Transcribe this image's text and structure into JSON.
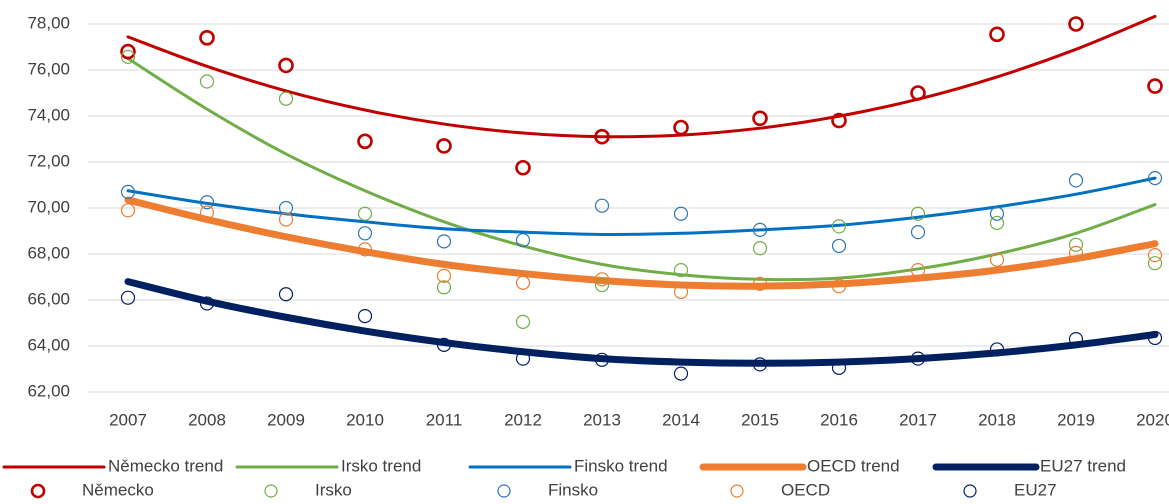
{
  "chart_data": {
    "type": "line",
    "categories": [
      "2007",
      "2008",
      "2009",
      "2010",
      "2011",
      "2012",
      "2013",
      "2014",
      "2015",
      "2016",
      "2017",
      "2018",
      "2019",
      "2020"
    ],
    "ylim": [
      62,
      78
    ],
    "yticks": [
      {
        "value": 62,
        "label": "62,00"
      },
      {
        "value": 64,
        "label": "64,00"
      },
      {
        "value": 66,
        "label": "66,00"
      },
      {
        "value": 68,
        "label": "68,00"
      },
      {
        "value": 70,
        "label": "70,00"
      },
      {
        "value": 72,
        "label": "72,00"
      },
      {
        "value": 74,
        "label": "74,00"
      },
      {
        "value": 76,
        "label": "76,00"
      },
      {
        "value": 78,
        "label": "78,00"
      }
    ],
    "grid": true,
    "legend": "bottom",
    "series": [
      {
        "name": "Německo trend",
        "kind": "line",
        "color": "#c00000",
        "values": [
          77.44,
          76.16,
          75.09,
          74.26,
          73.65,
          73.26,
          73.1,
          73.17,
          73.47,
          73.99,
          74.73,
          75.7,
          76.9,
          78.33
        ]
      },
      {
        "name": "Irsko trend",
        "kind": "line",
        "color": "#70ad47",
        "values": [
          76.5,
          74.3,
          72.35,
          70.75,
          69.4,
          68.35,
          67.55,
          67.1,
          66.9,
          66.95,
          67.35,
          68.0,
          68.9,
          70.15
        ]
      },
      {
        "name": "Finsko trend",
        "kind": "line",
        "color": "#0070c0",
        "values": [
          70.75,
          70.2,
          69.75,
          69.4,
          69.1,
          68.95,
          68.85,
          68.9,
          69.05,
          69.25,
          69.6,
          70.05,
          70.6,
          71.3
        ]
      },
      {
        "name": "OECD trend",
        "kind": "line",
        "color": "#ed7d31",
        "values": [
          70.35,
          69.5,
          68.75,
          68.1,
          67.55,
          67.15,
          66.85,
          66.65,
          66.6,
          66.7,
          66.95,
          67.3,
          67.8,
          68.45
        ]
      },
      {
        "name": "EU27 trend",
        "kind": "line",
        "color": "#002060",
        "values": [
          66.8,
          65.95,
          65.25,
          64.65,
          64.15,
          63.75,
          63.45,
          63.3,
          63.25,
          63.3,
          63.45,
          63.7,
          64.05,
          64.5
        ]
      },
      {
        "name": "Německo",
        "kind": "scatter",
        "color": "#c00000",
        "values": [
          76.8,
          77.4,
          76.2,
          72.9,
          72.7,
          71.75,
          73.1,
          73.5,
          73.9,
          73.8,
          75.0,
          77.55,
          78.0,
          75.3
        ]
      },
      {
        "name": "Irsko",
        "kind": "scatter",
        "color": "#70ad47",
        "values": [
          76.57,
          75.5,
          74.75,
          69.75,
          66.55,
          65.05,
          66.65,
          67.3,
          68.25,
          69.2,
          69.75,
          69.35,
          68.4,
          67.6
        ]
      },
      {
        "name": "Finsko",
        "kind": "scatter",
        "color": "#2e75b6",
        "values": [
          70.7,
          70.25,
          70.0,
          68.9,
          68.55,
          68.6,
          70.1,
          69.75,
          69.05,
          68.35,
          68.95,
          69.75,
          71.2,
          71.3
        ]
      },
      {
        "name": "OECD",
        "kind": "scatter",
        "color": "#ed7d31",
        "values": [
          69.9,
          69.8,
          69.5,
          68.2,
          67.05,
          66.75,
          66.9,
          66.35,
          66.7,
          66.6,
          67.3,
          67.75,
          68.05,
          67.95
        ]
      },
      {
        "name": "EU27",
        "kind": "scatter",
        "color": "#002060",
        "values": [
          66.1,
          65.85,
          66.25,
          65.3,
          64.05,
          63.45,
          63.4,
          62.8,
          63.2,
          63.05,
          63.45,
          63.85,
          64.3,
          64.35
        ]
      }
    ]
  }
}
